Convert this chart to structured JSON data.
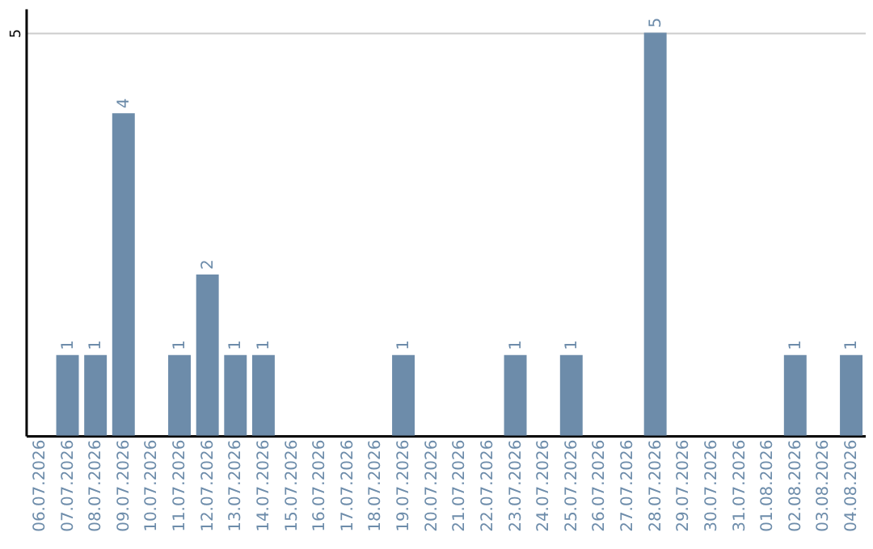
{
  "chart_data": {
    "type": "bar",
    "categories": [
      "06.07.2026",
      "07.07.2026",
      "08.07.2026",
      "09.07.2026",
      "10.07.2026",
      "11.07.2026",
      "12.07.2026",
      "13.07.2026",
      "14.07.2026",
      "15.07.2026",
      "16.07.2026",
      "17.07.2026",
      "18.07.2026",
      "19.07.2026",
      "20.07.2026",
      "21.07.2026",
      "22.07.2026",
      "23.07.2026",
      "24.07.2026",
      "25.07.2026",
      "26.07.2026",
      "27.07.2026",
      "28.07.2026",
      "29.07.2026",
      "30.07.2026",
      "31.07.2026",
      "01.08.2026",
      "02.08.2026",
      "03.08.2026",
      "04.08.2026"
    ],
    "values": [
      0,
      1,
      1,
      4,
      0,
      1,
      2,
      1,
      1,
      0,
      0,
      0,
      0,
      1,
      0,
      0,
      0,
      1,
      0,
      1,
      0,
      0,
      5,
      0,
      0,
      0,
      0,
      1,
      0,
      1
    ],
    "value_labels": [
      null,
      "1",
      "1",
      "4",
      null,
      "1",
      "2",
      "1",
      "1",
      null,
      null,
      null,
      null,
      "1",
      null,
      null,
      null,
      "1",
      null,
      "1",
      null,
      null,
      "5",
      null,
      null,
      null,
      null,
      "1",
      null,
      "1"
    ],
    "color": "#6d8caa",
    "ylim": [
      0,
      5.3
    ],
    "yticks": [
      5
    ],
    "grid": "y"
  }
}
